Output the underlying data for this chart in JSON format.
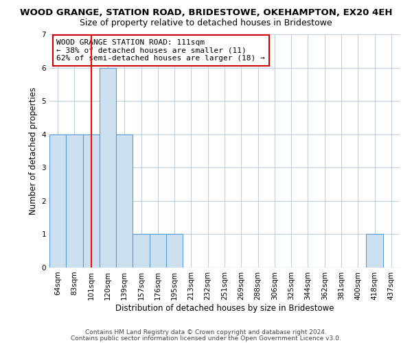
{
  "title": "WOOD GRANGE, STATION ROAD, BRIDESTOWE, OKEHAMPTON, EX20 4EH",
  "subtitle": "Size of property relative to detached houses in Bridestowe",
  "xlabel": "Distribution of detached houses by size in Bridestowe",
  "ylabel": "Number of detached properties",
  "categories": [
    "64sqm",
    "83sqm",
    "101sqm",
    "120sqm",
    "139sqm",
    "157sqm",
    "176sqm",
    "195sqm",
    "213sqm",
    "232sqm",
    "251sqm",
    "269sqm",
    "288sqm",
    "306sqm",
    "325sqm",
    "344sqm",
    "362sqm",
    "381sqm",
    "400sqm",
    "418sqm",
    "437sqm"
  ],
  "values": [
    4,
    4,
    4,
    6,
    4,
    1,
    1,
    1,
    0,
    0,
    0,
    0,
    0,
    0,
    0,
    0,
    0,
    0,
    0,
    1,
    0
  ],
  "bar_color": "#cde0f0",
  "bar_edge_color": "#5b9bd5",
  "red_line_index": 2,
  "ylim": [
    0,
    7
  ],
  "yticks": [
    0,
    1,
    2,
    3,
    4,
    5,
    6,
    7
  ],
  "annotation_text": "WOOD GRANGE STATION ROAD: 111sqm\n← 38% of detached houses are smaller (11)\n62% of semi-detached houses are larger (18) →",
  "annotation_box_color": "#ffffff",
  "annotation_box_edge_color": "#cc0000",
  "footer_line1": "Contains HM Land Registry data © Crown copyright and database right 2024.",
  "footer_line2": "Contains public sector information licensed under the Open Government Licence v3.0.",
  "background_color": "#ffffff",
  "grid_color": "#c0d0e0",
  "title_fontsize": 9.5,
  "subtitle_fontsize": 9,
  "axis_label_fontsize": 8.5,
  "tick_fontsize": 7.5,
  "annotation_fontsize": 8,
  "footer_fontsize": 6.5
}
